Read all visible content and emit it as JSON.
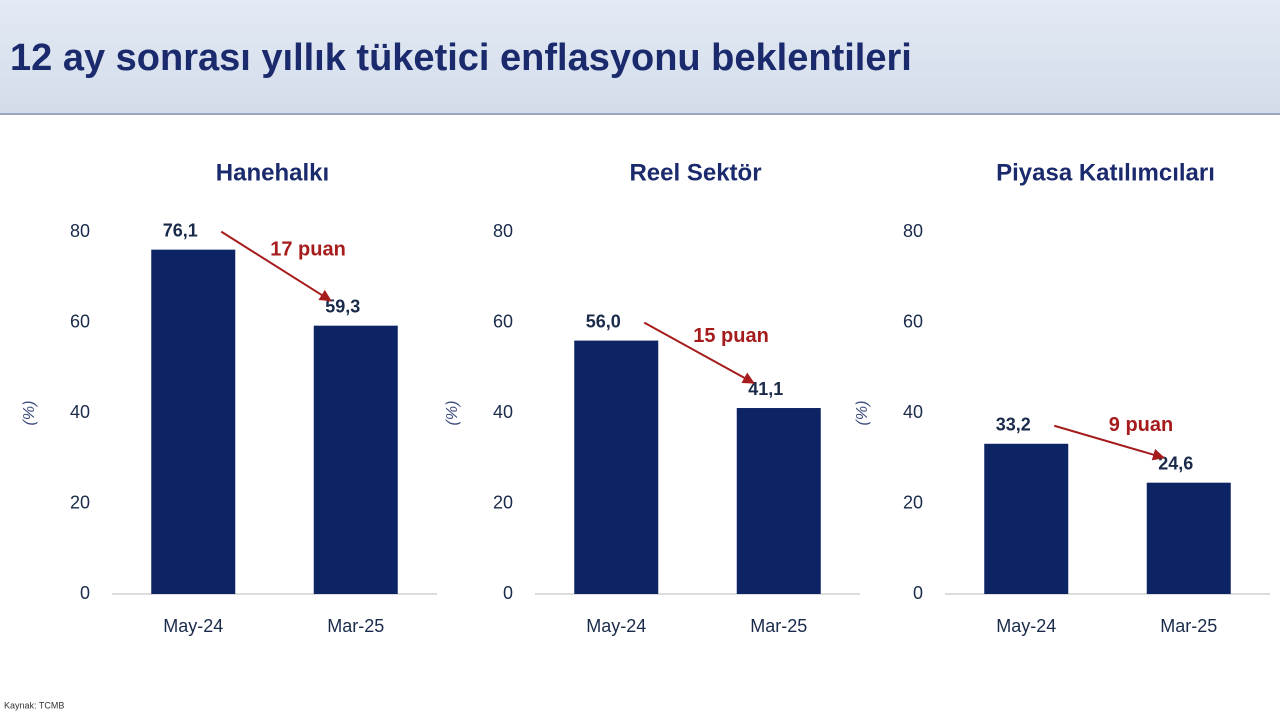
{
  "title": "12 ay sonrası yıllık tüketici enflasyonu beklentileri",
  "source": "Kaynak: TCMB",
  "chart_data": [
    {
      "type": "bar",
      "title": "Hanehalkı",
      "y_label": "(%)",
      "categories": [
        "May-24",
        "Mar-25"
      ],
      "values": [
        76.1,
        59.3
      ],
      "value_labels": [
        "76,1",
        "59,3"
      ],
      "annotation": "17 puan",
      "color": "#0c2463",
      "ylim": [
        0,
        80
      ],
      "yticks": [
        0,
        20,
        40,
        60,
        80
      ]
    },
    {
      "type": "bar",
      "title": "Reel Sektör",
      "y_label": "(%)",
      "categories": [
        "May-24",
        "Mar-25"
      ],
      "values": [
        56.0,
        41.1
      ],
      "value_labels": [
        "56,0",
        "41,1"
      ],
      "annotation": "15 puan",
      "color": "#0c2463",
      "ylim": [
        0,
        80
      ],
      "yticks": [
        0,
        20,
        40,
        60,
        80
      ]
    },
    {
      "type": "bar",
      "title": "Piyasa Katılımcıları",
      "y_label": "(%)",
      "categories": [
        "May-24",
        "Mar-25"
      ],
      "values": [
        33.2,
        24.6
      ],
      "value_labels": [
        "33,2",
        "24,6"
      ],
      "annotation": "9 puan",
      "color": "#0c2463",
      "ylim": [
        0,
        80
      ],
      "yticks": [
        0,
        20,
        40,
        60,
        80
      ]
    }
  ]
}
